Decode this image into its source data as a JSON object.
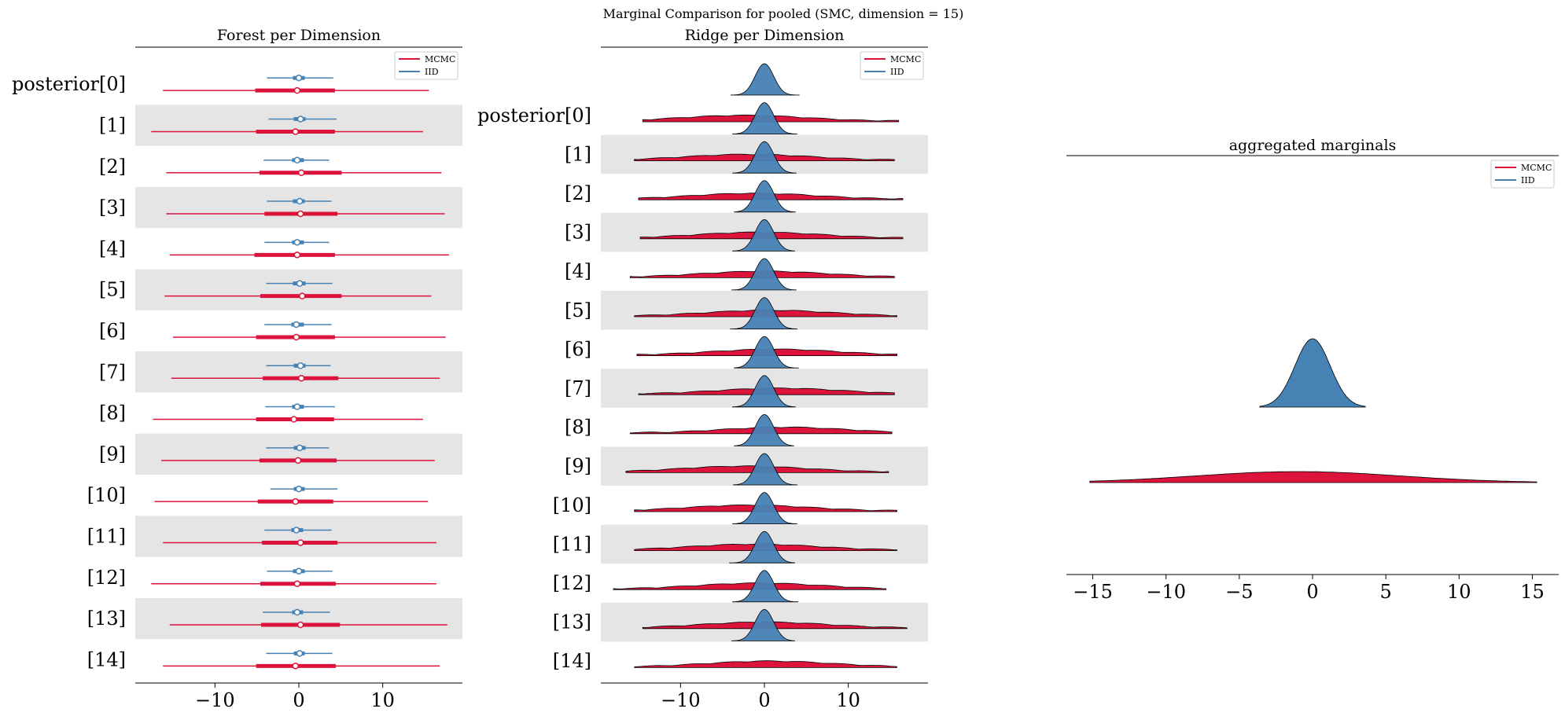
{
  "figure_title": "Marginal Comparison for pooled (SMC, dimension = 15)",
  "colors": {
    "mcmc": "#dc143c",
    "iid": "#4682b4",
    "band": "#e5e5e5"
  },
  "chart_data": [
    {
      "type": "forest",
      "title": "Forest per Dimension",
      "xlim": [
        -19.5,
        19.5
      ],
      "xticks": [
        -10,
        0,
        10
      ],
      "xticklabels": [
        "−10",
        "0",
        "10"
      ],
      "labels": [
        "posterior[0]",
        "[1]",
        "[2]",
        "[3]",
        "[4]",
        "[5]",
        "[6]",
        "[7]",
        "[8]",
        "[9]",
        "[10]",
        "[11]",
        "[12]",
        "[13]",
        "[14]"
      ],
      "legend": [
        "MCMC",
        "IID"
      ],
      "legend_position": "upper-right",
      "series": [
        {
          "name": "MCMC",
          "median": [
            -0.2,
            -0.4,
            0.3,
            0.2,
            -0.2,
            0.4,
            -0.3,
            0.3,
            -0.6,
            -0.1,
            -0.4,
            0.2,
            -0.2,
            0.2,
            -0.4
          ],
          "q25": [
            -5.2,
            -5.1,
            -4.7,
            -4.1,
            -5.3,
            -4.6,
            -5.1,
            -4.3,
            -5.1,
            -4.7,
            -4.9,
            -4.4,
            -4.6,
            -4.5,
            -5.1
          ],
          "q75": [
            4.3,
            4.3,
            5.1,
            4.6,
            4.3,
            5.1,
            4.3,
            4.7,
            4.2,
            4.5,
            4.1,
            4.6,
            4.4,
            4.9,
            4.4
          ],
          "min": [
            -16.2,
            -17.6,
            -15.8,
            -15.8,
            -15.4,
            -16.0,
            -15.0,
            -15.2,
            -17.4,
            -16.4,
            -17.2,
            -16.2,
            -17.6,
            -15.4,
            -16.2
          ],
          "max": [
            15.5,
            14.8,
            17.0,
            17.4,
            17.9,
            15.8,
            17.5,
            16.8,
            14.8,
            16.2,
            15.4,
            16.4,
            16.4,
            17.7,
            16.8
          ]
        },
        {
          "name": "IID",
          "median": [
            0.0,
            0.2,
            -0.2,
            0.1,
            -0.2,
            0.1,
            -0.3,
            0.2,
            -0.2,
            0.1,
            0.0,
            -0.3,
            0.0,
            -0.2,
            0.1
          ],
          "q25": [
            -0.7,
            -0.6,
            -0.8,
            -0.7,
            -0.8,
            -0.7,
            -0.9,
            -0.6,
            -0.8,
            -0.6,
            -0.6,
            -0.9,
            -0.7,
            -0.8,
            -0.6
          ],
          "q75": [
            0.7,
            0.8,
            0.6,
            0.7,
            0.6,
            0.8,
            0.6,
            0.8,
            0.6,
            0.8,
            0.7,
            0.5,
            0.7,
            0.5,
            0.7
          ],
          "min": [
            -3.8,
            -3.6,
            -4.2,
            -3.8,
            -4.1,
            -3.9,
            -4.1,
            -3.9,
            -4.0,
            -3.9,
            -3.4,
            -4.1,
            -3.8,
            -4.3,
            -3.9
          ],
          "max": [
            4.1,
            4.5,
            3.6,
            3.9,
            3.6,
            4.0,
            3.9,
            3.8,
            4.3,
            3.6,
            4.6,
            3.9,
            4.0,
            3.7,
            4.0
          ]
        }
      ]
    },
    {
      "type": "ridge",
      "title": "Ridge per Dimension",
      "xlim": [
        -19.5,
        19.5
      ],
      "xticks": [
        -10,
        0,
        10
      ],
      "xticklabels": [
        "−10",
        "0",
        "10"
      ],
      "labels": [
        "posterior[0]",
        "[1]",
        "[2]",
        "[3]",
        "[4]",
        "[5]",
        "[6]",
        "[7]",
        "[8]",
        "[9]",
        "[10]",
        "[11]",
        "[12]",
        "[13]",
        "[14]"
      ],
      "legend": [
        "MCMC",
        "IID"
      ],
      "legend_position": "upper-right",
      "mcmc_range": [
        [
          -14.5,
          16.0
        ],
        [
          -15.5,
          15.5
        ],
        [
          -15.0,
          16.5
        ],
        [
          -14.8,
          16.5
        ],
        [
          -16.0,
          15.5
        ],
        [
          -15.5,
          15.8
        ],
        [
          -15.2,
          15.8
        ],
        [
          -15.0,
          15.5
        ],
        [
          -16.0,
          15.2
        ],
        [
          -16.5,
          14.8
        ],
        [
          -15.5,
          15.8
        ],
        [
          -15.5,
          15.8
        ],
        [
          -18.0,
          14.5
        ],
        [
          -14.5,
          17.0
        ],
        [
          -15.5,
          15.8
        ]
      ],
      "iid_range": [
        [
          -4.0,
          4.2
        ],
        [
          -3.8,
          3.9
        ],
        [
          -3.8,
          3.8
        ],
        [
          -3.6,
          3.7
        ],
        [
          -3.8,
          3.6
        ],
        [
          -3.9,
          3.8
        ],
        [
          -4.1,
          3.9
        ],
        [
          -3.6,
          4.1
        ],
        [
          -3.8,
          3.7
        ],
        [
          -3.6,
          3.5
        ],
        [
          -3.7,
          3.9
        ],
        [
          -3.8,
          3.9
        ],
        [
          -4.2,
          3.6
        ],
        [
          -3.8,
          4.0
        ],
        [
          -3.9,
          3.6
        ]
      ]
    },
    {
      "type": "density",
      "title": "aggregated marginals",
      "xlim": [
        -16.8,
        16.8
      ],
      "xticks": [
        -15,
        -10,
        -5,
        0,
        5,
        10,
        15
      ],
      "xticklabels": [
        "−15",
        "−10",
        "−5",
        "0",
        "5",
        "10",
        "15"
      ],
      "legend": [
        "MCMC",
        "IID"
      ],
      "legend_position": "upper-right",
      "series": [
        {
          "name": "MCMC",
          "range": [
            -15.2,
            15.3
          ],
          "peak": -1.0
        },
        {
          "name": "IID",
          "range": [
            -3.6,
            3.6
          ],
          "peak": 0.0
        }
      ]
    }
  ]
}
